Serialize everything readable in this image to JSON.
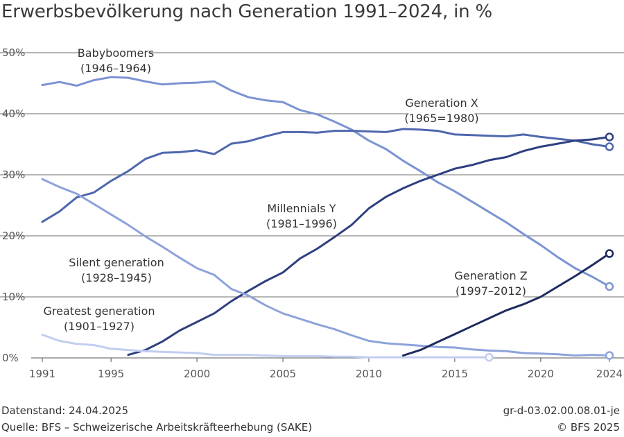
{
  "chart_data": {
    "type": "line",
    "title": "Erwerbsbevölkerung nach Generation 1991–2024, in %",
    "xlabel": "",
    "ylabel": "",
    "xlim": [
      1991,
      2024
    ],
    "ylim": [
      0,
      50
    ],
    "x_ticks": [
      1991,
      1995,
      2000,
      2005,
      2010,
      2015,
      2020,
      2024
    ],
    "y_ticks": [
      0,
      10,
      20,
      30,
      40,
      50
    ],
    "y_tick_labels": [
      "0%",
      "10%",
      "20%",
      "30%",
      "40%",
      "50%"
    ],
    "grid": "horizontal",
    "series": [
      {
        "name": "Babyboomers",
        "label_lines": [
          "Babyboomers",
          "(1946–1964)"
        ],
        "color": "#7b93d3",
        "x": [
          1991,
          1992,
          1993,
          1994,
          1995,
          1996,
          1997,
          1998,
          1999,
          2000,
          2001,
          2002,
          2003,
          2004,
          2005,
          2006,
          2007,
          2008,
          2009,
          2010,
          2011,
          2012,
          2013,
          2014,
          2015,
          2016,
          2017,
          2018,
          2019,
          2020,
          2021,
          2022,
          2023,
          2024
        ],
        "values": [
          44.7,
          45.2,
          44.6,
          45.5,
          46.0,
          45.9,
          45.3,
          44.8,
          45.0,
          45.1,
          45.3,
          43.8,
          42.7,
          42.2,
          41.9,
          40.6,
          39.9,
          38.7,
          37.4,
          35.6,
          34.2,
          32.3,
          30.6,
          28.8,
          27.3,
          25.6,
          23.9,
          22.2,
          20.3,
          18.5,
          16.5,
          14.7,
          13.3,
          11.7
        ]
      },
      {
        "name": "Generation X",
        "label_lines": [
          "Generation X",
          "(1965=1980)"
        ],
        "color": "#4f67ad",
        "x": [
          1991,
          1992,
          1993,
          1994,
          1995,
          1996,
          1997,
          1998,
          1999,
          2000,
          2001,
          2002,
          2003,
          2004,
          2005,
          2006,
          2007,
          2008,
          2009,
          2010,
          2011,
          2012,
          2013,
          2014,
          2015,
          2016,
          2017,
          2018,
          2019,
          2020,
          2021,
          2022,
          2023,
          2024
        ],
        "values": [
          22.3,
          24.0,
          26.3,
          27.1,
          29.0,
          30.6,
          32.6,
          33.6,
          33.7,
          34.0,
          33.4,
          35.1,
          35.5,
          36.3,
          37.0,
          37.0,
          36.9,
          37.2,
          37.2,
          37.1,
          37.0,
          37.5,
          37.4,
          37.2,
          36.6,
          36.5,
          36.4,
          36.3,
          36.6,
          36.2,
          35.9,
          35.6,
          35.0,
          34.6
        ]
      },
      {
        "name": "Millennials Y",
        "label_lines": [
          "Millennials Y",
          "(1981–1996)"
        ],
        "color": "#2e3f80",
        "x": [
          1996,
          1997,
          1998,
          1999,
          2000,
          2001,
          2002,
          2003,
          2004,
          2005,
          2006,
          2007,
          2008,
          2009,
          2010,
          2011,
          2012,
          2013,
          2014,
          2015,
          2016,
          2017,
          2018,
          2019,
          2020,
          2021,
          2022,
          2023,
          2024
        ],
        "values": [
          0.5,
          1.3,
          2.7,
          4.5,
          5.9,
          7.3,
          9.3,
          11.0,
          12.6,
          14.0,
          16.3,
          17.9,
          19.8,
          21.8,
          24.5,
          26.4,
          27.8,
          29.0,
          30.0,
          31.0,
          31.6,
          32.4,
          32.9,
          33.9,
          34.6,
          35.1,
          35.6,
          35.8,
          36.2
        ]
      },
      {
        "name": "Silent generation",
        "label_lines": [
          "Silent generation",
          "(1928–1945)"
        ],
        "color": "#8ea3db",
        "x": [
          1991,
          1992,
          1993,
          1994,
          1995,
          1996,
          1997,
          1998,
          1999,
          2000,
          2001,
          2002,
          2003,
          2004,
          2005,
          2006,
          2007,
          2008,
          2009,
          2010,
          2011,
          2012,
          2013,
          2014,
          2015,
          2016,
          2017,
          2018,
          2019,
          2020,
          2021,
          2022,
          2023,
          2024
        ],
        "values": [
          29.3,
          28.0,
          26.9,
          25.2,
          23.5,
          21.8,
          19.9,
          18.2,
          16.4,
          14.7,
          13.6,
          11.3,
          10.2,
          8.6,
          7.3,
          6.4,
          5.5,
          4.7,
          3.7,
          2.8,
          2.4,
          2.2,
          2.0,
          1.8,
          1.7,
          1.4,
          1.2,
          1.1,
          0.8,
          0.7,
          0.6,
          0.4,
          0.5,
          0.4
        ]
      },
      {
        "name": "Greatest generation",
        "label_lines": [
          "Greatest generation",
          "(1901–1927)"
        ],
        "color": "#c2cdef",
        "x": [
          1991,
          1992,
          1993,
          1994,
          1995,
          1996,
          1997,
          1998,
          1999,
          2000,
          2001,
          2002,
          2003,
          2004,
          2005,
          2006,
          2007,
          2008,
          2009,
          2010,
          2011,
          2012,
          2013,
          2014,
          2015,
          2016,
          2017
        ],
        "values": [
          3.8,
          2.8,
          2.3,
          2.1,
          1.5,
          1.3,
          1.1,
          1.0,
          0.9,
          0.8,
          0.5,
          0.5,
          0.5,
          0.4,
          0.3,
          0.3,
          0.3,
          0.2,
          0.2,
          0.1,
          0.1,
          0.1,
          0.1,
          0.1,
          0.1,
          0.1,
          0.1
        ]
      },
      {
        "name": "Generation Z",
        "label_lines": [
          "Generation Z",
          "(1997–2012)"
        ],
        "color": "#1f2b5e",
        "x": [
          2012,
          2013,
          2014,
          2015,
          2016,
          2017,
          2018,
          2019,
          2020,
          2021,
          2022,
          2023,
          2024
        ],
        "values": [
          0.4,
          1.3,
          2.6,
          3.9,
          5.2,
          6.5,
          7.8,
          8.8,
          10.0,
          11.7,
          13.4,
          15.2,
          17.1
        ]
      }
    ]
  },
  "footer": {
    "date": "Datenstand: 24.04.2025",
    "source": "Quelle: BFS – Schweizerische Arbeitskräfteerhebung (SAKE)",
    "id": "gr-d-03.02.00.08.01-je",
    "copyright": "© BFS 2025"
  }
}
